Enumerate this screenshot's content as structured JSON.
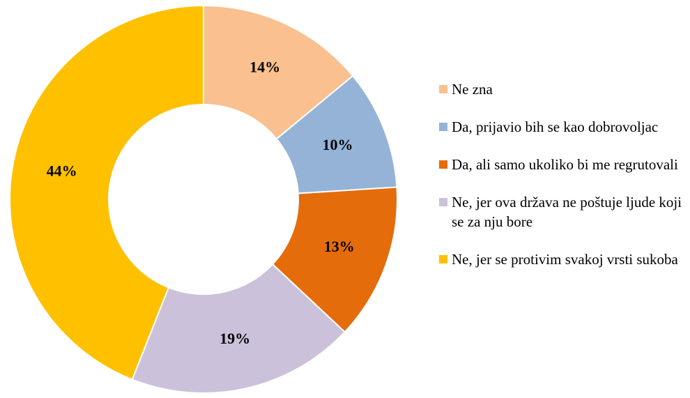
{
  "chart_data": {
    "type": "donut",
    "categories": [
      "Ne zna",
      "Da, prijavio bih se kao dobrovoljac",
      "Da, ali samo ukoliko bi me regrutovali",
      "Ne, jer ova država ne poštuje ljude koji se za nju bore",
      "Ne, jer se protivim svakoj vrsti sukoba"
    ],
    "values": [
      14,
      10,
      13,
      19,
      44
    ],
    "value_labels": [
      "14%",
      "10%",
      "13%",
      "19%",
      "44%"
    ],
    "colors": [
      "#FAC090",
      "#95B3D7",
      "#E46C0A",
      "#CCC1DA",
      "#FFC000"
    ],
    "legend": "right"
  }
}
